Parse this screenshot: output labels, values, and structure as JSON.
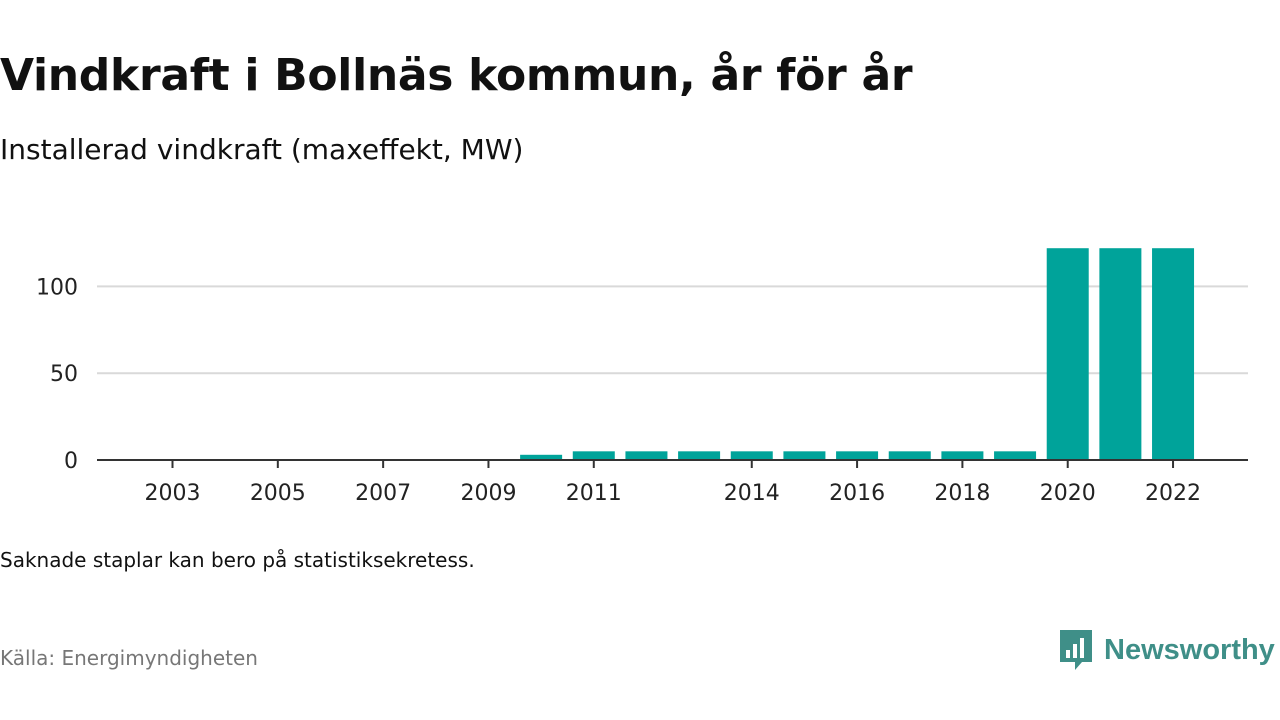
{
  "header": {
    "title": "Vindkraft i Bollnäs kommun, år för år",
    "subtitle": "Installerad vindkraft (maxeffekt, MW)"
  },
  "footer": {
    "note": "Saknade staplar kan bero på statistiksekretess.",
    "source": "Källa: Energimyndigheten",
    "brand": "Newsworthy",
    "brand_icon": "newsworthy-logo-icon"
  },
  "colors": {
    "bar": "#00a39a",
    "grid": "#d9d9d9",
    "axis": "#333333",
    "brand": "#3f8f88"
  },
  "chart_data": {
    "type": "bar",
    "title": "Vindkraft i Bollnäs kommun, år för år",
    "subtitle": "Installerad vindkraft (maxeffekt, MW)",
    "xlabel": "",
    "ylabel": "",
    "categories": [
      2003,
      2004,
      2005,
      2006,
      2007,
      2008,
      2009,
      2010,
      2011,
      2012,
      2013,
      2014,
      2015,
      2016,
      2017,
      2018,
      2019,
      2020,
      2021,
      2022
    ],
    "values": [
      0,
      0,
      0,
      0,
      0,
      0,
      0,
      3,
      5,
      5,
      5,
      5,
      5,
      5,
      5,
      5,
      5,
      122,
      122,
      122
    ],
    "x_tick_labels": [
      "2003",
      "2005",
      "2007",
      "2009",
      "2011",
      "2014",
      "2016",
      "2018",
      "2020",
      "2022"
    ],
    "x_tick_years": [
      2003,
      2005,
      2007,
      2009,
      2011,
      2014,
      2016,
      2018,
      2020,
      2022
    ],
    "y_ticks": [
      0,
      50,
      100
    ],
    "ylim": [
      0,
      125
    ],
    "grid": true,
    "legend": "none"
  }
}
